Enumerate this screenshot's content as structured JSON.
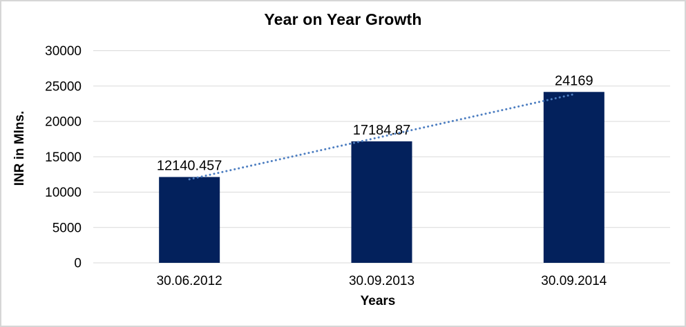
{
  "window": {
    "background": "#ffffff",
    "border_color": "#d6d6d6"
  },
  "chart_data": {
    "type": "bar",
    "title": "Year on Year Growth",
    "xlabel": "Years",
    "ylabel": "INR in Mlns.",
    "categories": [
      "30.06.2012",
      "30.09.2013",
      "30.09.2014"
    ],
    "values": [
      12140.457,
      17184.87,
      24169
    ],
    "data_labels": [
      "12140.457",
      "17184.87",
      "24169"
    ],
    "ylim": [
      0,
      30000
    ],
    "ytick_step": 5000,
    "yticks": [
      "0",
      "5000",
      "10000",
      "15000",
      "20000",
      "25000",
      "30000"
    ],
    "grid": true,
    "legend": "none",
    "bar_color": "#03215c",
    "gridline_color": "#d9d9d9",
    "axis_text_color": "#000000",
    "trendline": {
      "type": "linear",
      "style": "dotted",
      "color": "#4d7ec1"
    }
  }
}
